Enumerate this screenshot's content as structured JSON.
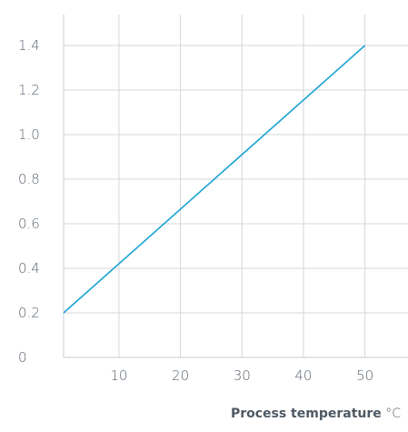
{
  "chart_data": {
    "type": "line",
    "title": "",
    "xlabel": "Process temperature",
    "xlabel_unit": "°C",
    "ylabel": "",
    "xlim": [
      1,
      57
    ],
    "ylim": [
      0,
      1.4
    ],
    "x_ticks": [
      10,
      20,
      30,
      40,
      50
    ],
    "y_ticks": [
      0,
      0.2,
      0.4,
      0.6,
      0.8,
      1.0,
      1.2,
      1.4
    ],
    "x_tick_labels": [
      "10",
      "20",
      "30",
      "40",
      "50"
    ],
    "y_tick_labels": [
      "0",
      "0.2",
      "0.4",
      "0.6",
      "0.8",
      "1.0",
      "1.2",
      "1.4"
    ],
    "grid": true,
    "series": [
      {
        "x": [
          1,
          50
        ],
        "y": [
          0.2,
          1.4
        ]
      }
    ],
    "colors": {
      "series": "#1aa3d2",
      "grid": "#d3d7db",
      "text": "#5b6670"
    }
  }
}
